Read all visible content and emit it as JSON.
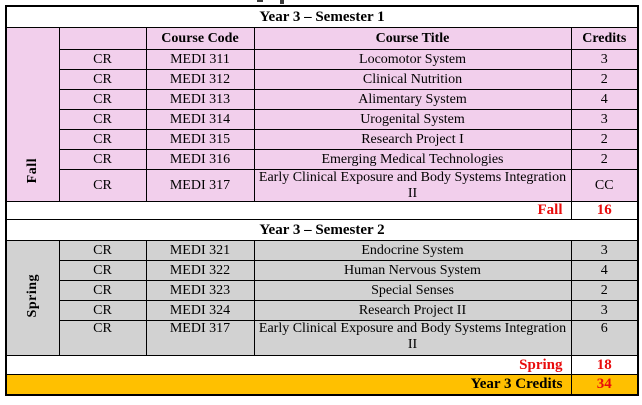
{
  "colors": {
    "semester1_bg": "#F2CFEC",
    "semester2_bg": "#D2D2D2",
    "grand_total_bg": "#FFC000",
    "total_text_red": "#E80C0C",
    "border": "#000000"
  },
  "semester1": {
    "title": "Year 3 – Semester 1",
    "season_label": "Fall",
    "headers": {
      "course_code": "Course Code",
      "course_title": "Course Title",
      "credits": "Credits"
    },
    "rows": [
      {
        "type": "CR",
        "code": "MEDI 311",
        "title": "Locomotor System",
        "credits": "3"
      },
      {
        "type": "CR",
        "code": "MEDI 312",
        "title": "Clinical Nutrition",
        "credits": "2"
      },
      {
        "type": "CR",
        "code": "MEDI 313",
        "title": "Alimentary System",
        "credits": "4"
      },
      {
        "type": "CR",
        "code": "MEDI 314",
        "title": "Urogenital System",
        "credits": "3"
      },
      {
        "type": "CR",
        "code": "MEDI 315",
        "title": "Research Project I",
        "credits": "2"
      },
      {
        "type": "CR",
        "code": "MEDI 316",
        "title": "Emerging Medical Technologies",
        "credits": "2"
      },
      {
        "type": "CR",
        "code": "MEDI 317",
        "title": "Early Clinical Exposure and Body Systems Integration II",
        "credits": "CC"
      }
    ],
    "total_label": "Fall",
    "total_value": "16"
  },
  "semester2": {
    "title": "Year 3 – Semester 2",
    "season_label": "Spring",
    "rows": [
      {
        "type": "CR",
        "code": "MEDI 321",
        "title": "Endocrine System",
        "credits": "3"
      },
      {
        "type": "CR",
        "code": "MEDI 322",
        "title": "Human Nervous System",
        "credits": "4"
      },
      {
        "type": "CR",
        "code": "MEDI 323",
        "title": "Special Senses",
        "credits": "2"
      },
      {
        "type": "CR",
        "code": "MEDI 324",
        "title": "Research Project II",
        "credits": "3"
      },
      {
        "type": "CR",
        "code": "MEDI 317",
        "title": "Early Clinical Exposure and Body Systems Integration II",
        "credits": "6"
      }
    ],
    "total_label": "Spring",
    "total_value": "18"
  },
  "grand_total": {
    "label": "Year 3 Credits",
    "value": "34"
  }
}
